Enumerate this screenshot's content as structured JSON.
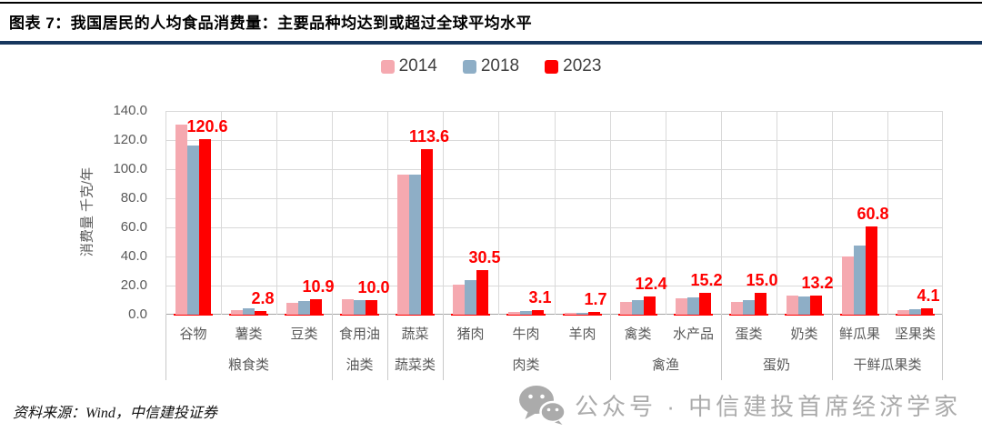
{
  "header": {
    "title": "图表 7：我国居民的人均食品消费量：主要品种均达到或超过全球平均水平"
  },
  "footer": {
    "source": "资料来源：Wind，中信建投证券"
  },
  "watermark": {
    "icon": "wechat-icon",
    "text": "公众号 · 中信建投首席经济学家"
  },
  "colors": {
    "title_rule_navy": "#17375E",
    "top_rule_black": "#000000",
    "gridline": "#D9D9D9",
    "axis_text": "#595959",
    "legend_text": "#404040",
    "data_label_red": "#FF0000",
    "watermark_gray": "#ABABAB",
    "series_2014": "#F5A9B0",
    "series_2018": "#8EAEC6",
    "series_2023": "#FF0000"
  },
  "chart_data": {
    "type": "bar",
    "title": "",
    "ylabel": "消费量 千克/年",
    "xlabel": "",
    "ylim": [
      0,
      140
    ],
    "ytick_step": 20,
    "ytick_format_decimals": 1,
    "grid": true,
    "legend_position": "top-center",
    "categories": [
      "谷物",
      "薯类",
      "豆类",
      "食用油",
      "蔬菜",
      "猪肉",
      "牛肉",
      "羊肉",
      "禽类",
      "水产品",
      "蛋类",
      "奶类",
      "鲜瓜果",
      "坚果类"
    ],
    "groups": [
      {
        "label": "粮食类",
        "span": 3
      },
      {
        "label": "油类",
        "span": 1
      },
      {
        "label": "蔬菜类",
        "span": 1
      },
      {
        "label": "肉类",
        "span": 3
      },
      {
        "label": "禽渔",
        "span": 2
      },
      {
        "label": "蛋奶",
        "span": 2
      },
      {
        "label": "干鲜瓜果类",
        "span": 2
      }
    ],
    "series": [
      {
        "name": "2014",
        "color": "#F5A9B0",
        "data_labels": false,
        "values": [
          130.6,
          2.9,
          8.0,
          10.6,
          96.5,
          20.5,
          1.9,
          1.2,
          8.8,
          11.0,
          8.6,
          12.9,
          40.0,
          3.3
        ]
      },
      {
        "name": "2018",
        "color": "#8EAEC6",
        "data_labels": false,
        "values": [
          116.0,
          4.1,
          9.2,
          10.2,
          96.0,
          23.5,
          2.4,
          1.5,
          10.0,
          12.0,
          9.8,
          12.2,
          47.8,
          3.9
        ]
      },
      {
        "name": "2023",
        "color": "#FF0000",
        "data_labels": true,
        "values": [
          120.6,
          2.8,
          10.9,
          10.0,
          113.6,
          30.5,
          3.1,
          1.7,
          12.4,
          15.2,
          15.0,
          13.2,
          60.8,
          4.1
        ]
      }
    ]
  }
}
